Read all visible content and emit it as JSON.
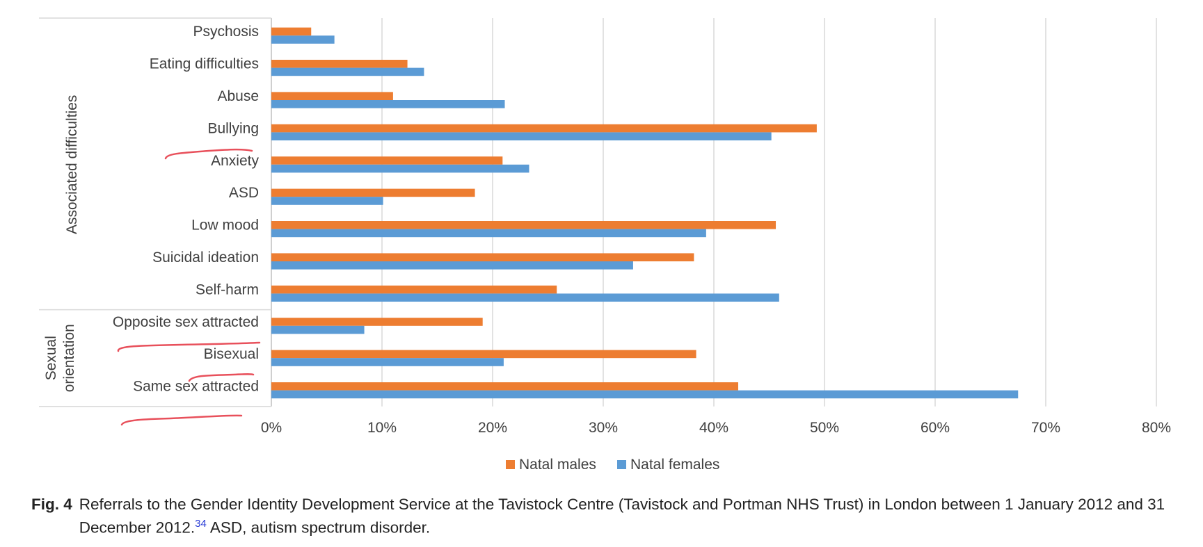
{
  "chart_data": {
    "type": "bar",
    "orientation": "horizontal",
    "categories": [
      "Psychosis",
      "Eating difficulties",
      "Abuse",
      "Bullying",
      "Anxiety",
      "ASD",
      "Low mood",
      "Suicidal ideation",
      "Self-harm",
      "Opposite sex attracted",
      "Bisexual",
      "Same sex attracted"
    ],
    "groups": [
      {
        "label": "Associated difficulties",
        "categories": [
          "Psychosis",
          "Eating difficulties",
          "Abuse",
          "Bullying",
          "Anxiety",
          "ASD",
          "Low mood",
          "Suicidal ideation",
          "Self-harm"
        ]
      },
      {
        "label": "Sexual orientation",
        "label_lines": [
          "Sexual",
          "orientation"
        ],
        "categories": [
          "Opposite sex attracted",
          "Bisexual",
          "Same sex attracted"
        ]
      }
    ],
    "series": [
      {
        "name": "Natal males",
        "color": "#ED7D31",
        "values": [
          3.6,
          12.3,
          11.0,
          49.3,
          20.9,
          18.4,
          45.6,
          38.2,
          25.8,
          19.1,
          38.4,
          42.2
        ]
      },
      {
        "name": "Natal females",
        "color": "#5B9BD5",
        "values": [
          5.7,
          13.8,
          21.1,
          45.2,
          23.3,
          10.1,
          39.3,
          32.7,
          45.9,
          8.4,
          21.0,
          67.5
        ]
      }
    ],
    "xlim": [
      0,
      80
    ],
    "xticks": [
      "0%",
      "10%",
      "20%",
      "30%",
      "40%",
      "50%",
      "60%",
      "70%",
      "80%"
    ],
    "xlabel": "",
    "ylabel": "",
    "grid": true,
    "legend_position": "bottom"
  },
  "caption": {
    "label": "Fig. 4",
    "text_before": "Referrals to the Gender Identity Development Service at the Tavistock Centre (Tavistock and Portman NHS Trust) in London between 1 January 2012 and 31 December 2012.",
    "reference": "34",
    "text_after": " ASD, autism spectrum disorder."
  },
  "annotations": {
    "color": "#e8505b",
    "style": "handwritten-underline"
  }
}
